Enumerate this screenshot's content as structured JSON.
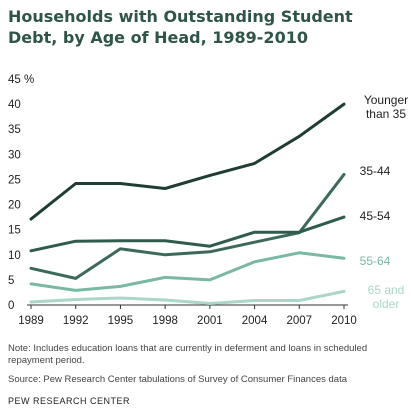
{
  "chart_data": {
    "type": "line",
    "title": "Households with Outstanding Student Debt, by Age of Head, 1989-2010",
    "x": [
      "1989",
      "1992",
      "1995",
      "1998",
      "2001",
      "2004",
      "2007",
      "2010"
    ],
    "ylim": [
      0,
      45
    ],
    "yticks": [
      "0",
      "5",
      "10",
      "15",
      "20",
      "25",
      "30",
      "35",
      "40",
      "45 %"
    ],
    "grid": false,
    "series": [
      {
        "name": "Younger than 35",
        "label_lines": [
          "Younger",
          "than 35"
        ],
        "color": "#1f3d33",
        "values": [
          17.1,
          24.2,
          24.2,
          23.2,
          25.8,
          28.2,
          33.6,
          40.0
        ]
      },
      {
        "name": "35-44",
        "label_lines": [
          "35-44"
        ],
        "color": "#3b6b58",
        "values": [
          7.3,
          5.3,
          11.2,
          10.0,
          10.6,
          12.5,
          14.4,
          26.0
        ]
      },
      {
        "name": "45-54",
        "label_lines": [
          "45-54"
        ],
        "color": "#2f5c4c",
        "values": [
          10.8,
          12.7,
          12.8,
          12.8,
          11.7,
          14.5,
          14.5,
          17.5
        ]
      },
      {
        "name": "55-64",
        "label_lines": [
          "55-64"
        ],
        "color": "#79b8a3",
        "values": [
          4.2,
          2.9,
          3.7,
          5.5,
          5.0,
          8.6,
          10.4,
          9.3
        ]
      },
      {
        "name": "65 and older",
        "label_lines": [
          "65 and",
          "older"
        ],
        "color": "#a9d7c8",
        "values": [
          0.6,
          1.1,
          1.4,
          1.0,
          0.3,
          0.9,
          0.9,
          2.7
        ]
      }
    ]
  },
  "note": "Note: Includes education loans that are currently in deferment and loans in scheduled repayment period.",
  "source": "Source: Pew Research Center tabulations of Survey of Consumer Finances data",
  "brand": "PEW RESEARCH CENTER"
}
